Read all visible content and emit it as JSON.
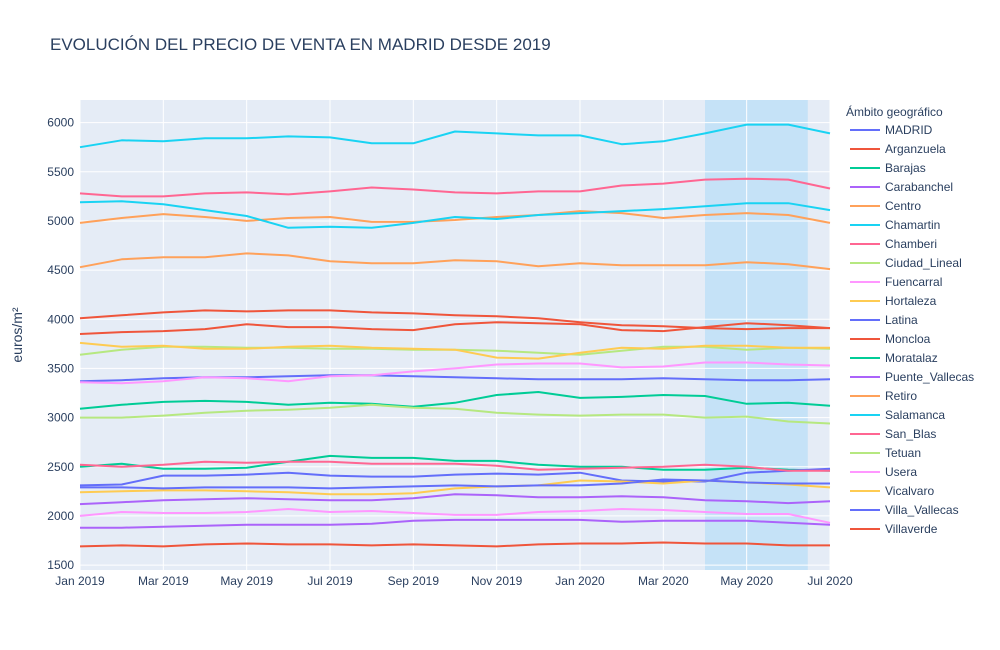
{
  "chart_data": {
    "type": "line",
    "title": "EVOLUCIÓN DEL PRECIO DE VENTA EN MADRID DESDE 2019",
    "xlabel": "",
    "ylabel": "euros/m²",
    "legend_title": "Ámbito geográfico",
    "legend_placement": "right",
    "grid": true,
    "xlim": [
      "2019-01",
      "2020-07"
    ],
    "ylim": [
      1450,
      6230
    ],
    "y_ticks": [
      1500,
      2000,
      2500,
      3000,
      3500,
      4000,
      4500,
      5000,
      5500,
      6000
    ],
    "x_ticks": [
      {
        "month": "2019-01",
        "label": "Jan 2019"
      },
      {
        "month": "2019-03",
        "label": "Mar 2019"
      },
      {
        "month": "2019-05",
        "label": "May 2019"
      },
      {
        "month": "2019-07",
        "label": "Jul 2019"
      },
      {
        "month": "2019-09",
        "label": "Sep 2019"
      },
      {
        "month": "2019-11",
        "label": "Nov 2019"
      },
      {
        "month": "2020-01",
        "label": "Jan 2020"
      },
      {
        "month": "2020-03",
        "label": "Mar 2020"
      },
      {
        "month": "2020-05",
        "label": "May 2020"
      },
      {
        "month": "2020-07",
        "label": "Jul 2020"
      }
    ],
    "highlight": {
      "from": "2020-04",
      "to": "2020-06-15",
      "color": "#bfe0f7"
    },
    "x": [
      "2019-01",
      "2019-02",
      "2019-03",
      "2019-04",
      "2019-05",
      "2019-06",
      "2019-07",
      "2019-08",
      "2019-09",
      "2019-10",
      "2019-11",
      "2019-12",
      "2020-01",
      "2020-02",
      "2020-03",
      "2020-04",
      "2020-05",
      "2020-06",
      "2020-07"
    ],
    "series": [
      {
        "name": "MADRID",
        "color": "#636efa",
        "values": [
          3370,
          3380,
          3400,
          3410,
          3410,
          3420,
          3430,
          3430,
          3420,
          3410,
          3400,
          3390,
          3390,
          3390,
          3400,
          3390,
          3380,
          3380,
          3390
        ]
      },
      {
        "name": "Arganzuela",
        "color": "#EF553B",
        "values": [
          3850,
          3870,
          3880,
          3900,
          3950,
          3920,
          3920,
          3900,
          3890,
          3950,
          3970,
          3960,
          3950,
          3890,
          3880,
          3920,
          3960,
          3940,
          3910
        ]
      },
      {
        "name": "Barajas",
        "color": "#00cc96",
        "values": [
          2500,
          2530,
          2480,
          2480,
          2490,
          2550,
          2610,
          2590,
          2590,
          2560,
          2560,
          2520,
          2500,
          2500,
          2470,
          2470,
          2490,
          2470,
          2460
        ]
      },
      {
        "name": "Carabanchel",
        "color": "#ab63fa",
        "values": [
          1880,
          1880,
          1890,
          1900,
          1910,
          1910,
          1910,
          1920,
          1950,
          1960,
          1960,
          1960,
          1960,
          1940,
          1950,
          1950,
          1950,
          1930,
          1910
        ]
      },
      {
        "name": "Centro",
        "color": "#FFA15A",
        "values": [
          4980,
          5030,
          5070,
          5040,
          5000,
          5030,
          5040,
          4990,
          4990,
          5010,
          5040,
          5060,
          5100,
          5080,
          5030,
          5060,
          5080,
          5060,
          4980
        ]
      },
      {
        "name": "Chamartin",
        "color": "#19d3f3",
        "values": [
          5750,
          5820,
          5810,
          5840,
          5840,
          5860,
          5850,
          5790,
          5790,
          5910,
          5890,
          5870,
          5870,
          5780,
          5810,
          5890,
          5980,
          5980,
          5890
        ]
      },
      {
        "name": "Chamberi",
        "color": "#FF6692",
        "values": [
          5280,
          5250,
          5250,
          5280,
          5290,
          5270,
          5300,
          5340,
          5320,
          5290,
          5280,
          5300,
          5300,
          5360,
          5380,
          5420,
          5430,
          5420,
          5330
        ]
      },
      {
        "name": "Ciudad_Lineal",
        "color": "#B6E880",
        "values": [
          3640,
          3690,
          3720,
          3720,
          3710,
          3710,
          3700,
          3700,
          3690,
          3690,
          3680,
          3660,
          3640,
          3680,
          3720,
          3720,
          3690,
          3710,
          3700
        ]
      },
      {
        "name": "Fuencarral",
        "color": "#FF97FF",
        "values": [
          3360,
          3350,
          3370,
          3410,
          3400,
          3370,
          3420,
          3430,
          3470,
          3500,
          3540,
          3550,
          3550,
          3510,
          3520,
          3560,
          3560,
          3540,
          3530
        ]
      },
      {
        "name": "Hortaleza",
        "color": "#FECB52",
        "values": [
          3760,
          3720,
          3730,
          3700,
          3700,
          3720,
          3730,
          3710,
          3700,
          3690,
          3610,
          3600,
          3660,
          3710,
          3700,
          3730,
          3730,
          3710,
          3710
        ]
      },
      {
        "name": "Latina",
        "color": "#636efa",
        "values": [
          2310,
          2320,
          2410,
          2410,
          2420,
          2440,
          2410,
          2400,
          2400,
          2420,
          2430,
          2420,
          2440,
          2360,
          2350,
          2350,
          2440,
          2460,
          2480
        ]
      },
      {
        "name": "Moncloa",
        "color": "#EF553B",
        "values": [
          4010,
          4040,
          4070,
          4090,
          4080,
          4090,
          4090,
          4070,
          4060,
          4040,
          4030,
          4010,
          3970,
          3940,
          3930,
          3910,
          3900,
          3910,
          3910
        ]
      },
      {
        "name": "Moratalaz",
        "color": "#00cc96",
        "values": [
          3090,
          3130,
          3160,
          3170,
          3160,
          3130,
          3150,
          3140,
          3110,
          3150,
          3230,
          3260,
          3200,
          3210,
          3230,
          3220,
          3140,
          3150,
          3120
        ]
      },
      {
        "name": "Puente_Vallecas",
        "color": "#ab63fa",
        "values": [
          2120,
          2140,
          2160,
          2170,
          2180,
          2170,
          2160,
          2160,
          2180,
          2220,
          2210,
          2190,
          2190,
          2200,
          2190,
          2160,
          2150,
          2130,
          2150
        ]
      },
      {
        "name": "Retiro",
        "color": "#FFA15A",
        "values": [
          4530,
          4610,
          4630,
          4630,
          4670,
          4650,
          4590,
          4570,
          4570,
          4600,
          4590,
          4540,
          4570,
          4550,
          4550,
          4550,
          4580,
          4560,
          4510
        ]
      },
      {
        "name": "Salamanca",
        "color": "#19d3f3",
        "values": [
          5190,
          5200,
          5170,
          5110,
          5050,
          4930,
          4940,
          4930,
          4980,
          5040,
          5020,
          5060,
          5080,
          5100,
          5120,
          5150,
          5180,
          5180,
          5110
        ]
      },
      {
        "name": "San_Blas",
        "color": "#FF6692",
        "values": [
          2520,
          2500,
          2520,
          2550,
          2540,
          2550,
          2550,
          2530,
          2530,
          2530,
          2510,
          2470,
          2480,
          2490,
          2500,
          2520,
          2500,
          2460,
          2460
        ]
      },
      {
        "name": "Tetuan",
        "color": "#B6E880",
        "values": [
          3000,
          3000,
          3020,
          3050,
          3070,
          3080,
          3100,
          3130,
          3100,
          3090,
          3050,
          3030,
          3020,
          3030,
          3030,
          3000,
          3010,
          2960,
          2940
        ]
      },
      {
        "name": "Usera",
        "color": "#FF97FF",
        "values": [
          2000,
          2040,
          2030,
          2030,
          2040,
          2070,
          2040,
          2050,
          2030,
          2010,
          2010,
          2040,
          2050,
          2070,
          2060,
          2040,
          2020,
          2020,
          1930
        ]
      },
      {
        "name": "Vicalvaro",
        "color": "#FECB52",
        "values": [
          2240,
          2250,
          2260,
          2260,
          2250,
          2240,
          2220,
          2220,
          2230,
          2280,
          2300,
          2310,
          2360,
          2350,
          2330,
          2360,
          2340,
          2320,
          2290
        ]
      },
      {
        "name": "Villa_Vallecas",
        "color": "#636efa",
        "values": [
          2290,
          2290,
          2280,
          2290,
          2290,
          2290,
          2280,
          2290,
          2300,
          2310,
          2300,
          2310,
          2310,
          2330,
          2370,
          2360,
          2340,
          2330,
          2330
        ]
      },
      {
        "name": "Villaverde",
        "color": "#EF553B",
        "values": [
          1690,
          1700,
          1690,
          1710,
          1720,
          1710,
          1710,
          1700,
          1710,
          1700,
          1690,
          1710,
          1720,
          1720,
          1730,
          1720,
          1720,
          1700,
          1700
        ]
      }
    ]
  }
}
